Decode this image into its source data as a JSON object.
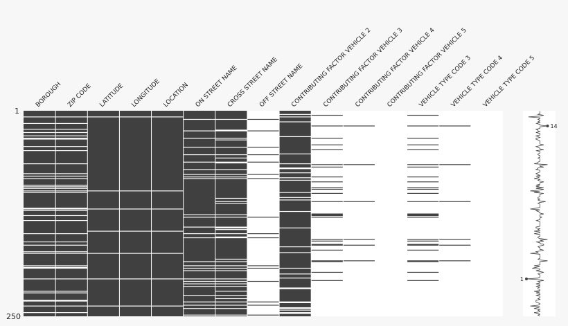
{
  "chart_data": {
    "type": "nullity-matrix",
    "rows": 250,
    "row_labels": {
      "top": "1",
      "bottom": "250"
    },
    "columns": [
      {
        "name": "BOROUGH",
        "completeness": 0.82
      },
      {
        "name": "ZIP CODE",
        "completeness": 0.82
      },
      {
        "name": "LATITUDE",
        "completeness": 0.96
      },
      {
        "name": "LONGITUDE",
        "completeness": 0.96
      },
      {
        "name": "LOCATION",
        "completeness": 0.96
      },
      {
        "name": "ON STREET NAME",
        "completeness": 0.84
      },
      {
        "name": "CROSS STREET NAME",
        "completeness": 0.8
      },
      {
        "name": "OFF STREET NAME",
        "completeness": 0.06
      },
      {
        "name": "CONTRIBUTING FACTOR VEHICLE 2",
        "completeness": 0.88
      },
      {
        "name": "CONTRIBUTING FACTOR VEHICLE 3",
        "completeness": 0.09
      },
      {
        "name": "CONTRIBUTING FACTOR VEHICLE 4",
        "completeness": 0.03
      },
      {
        "name": "CONTRIBUTING FACTOR VEHICLE 5",
        "completeness": 0.01
      },
      {
        "name": "VEHICLE TYPE CODE 3",
        "completeness": 0.09
      },
      {
        "name": "VEHICLE TYPE CODE 4",
        "completeness": 0.03
      },
      {
        "name": "VEHICLE TYPE CODE 5",
        "completeness": 0.01
      }
    ],
    "sparkline": {
      "min_value": 1,
      "max_value": 14,
      "min_label": "1",
      "max_label": "14"
    },
    "colors": {
      "filled": "#404040",
      "missing": "#ffffff",
      "background": "#f7f7f7",
      "text": "#222222"
    }
  }
}
